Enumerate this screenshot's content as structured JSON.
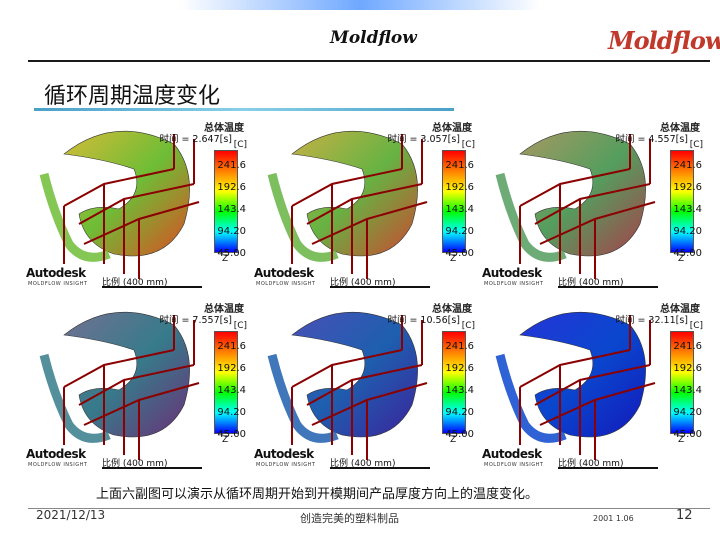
{
  "header": {
    "center_brand": "Moldflow",
    "logo": "Moldflow"
  },
  "title": "循环周期温度变化",
  "panels": [
    {
      "legend_title": "总体温度",
      "time": "时间 = 2.647[s]",
      "unit": "[C]",
      "ticks": [
        "241.6",
        "192.6",
        "143.4",
        "94.20",
        "45.00"
      ],
      "scale_label": "比例 (400 mm)",
      "brand": "Autodesk",
      "brand_sub": "MOLDFLOW INSIGHT",
      "axis": "Z",
      "blue_ratio": 0.08
    },
    {
      "legend_title": "总体温度",
      "time": "时间 = 3.057[s]",
      "unit": "[C]",
      "ticks": [
        "241.6",
        "192.6",
        "143.4",
        "94.20",
        "45.00"
      ],
      "scale_label": "比例 (400 mm)",
      "brand": "Autodesk",
      "brand_sub": "MOLDFLOW INSIGHT",
      "axis": "Z",
      "blue_ratio": 0.15
    },
    {
      "legend_title": "总体温度",
      "time": "时间 = 4.557[s]",
      "unit": "[C]",
      "ticks": [
        "241.6",
        "192.6",
        "143.4",
        "94.20",
        "45.00"
      ],
      "scale_label": "比例 (400 mm)",
      "brand": "Autodesk",
      "brand_sub": "MOLDFLOW INSIGHT",
      "axis": "Z",
      "blue_ratio": 0.3
    },
    {
      "legend_title": "总体温度",
      "time": "时间 = 7.557[s]",
      "unit": "[C]",
      "ticks": [
        "241.6",
        "192.6",
        "143.4",
        "94.20",
        "45.00"
      ],
      "scale_label": "比例 (400 mm)",
      "brand": "Autodesk",
      "brand_sub": "MOLDFLOW INSIGHT",
      "axis": "Z",
      "blue_ratio": 0.55
    },
    {
      "legend_title": "总体温度",
      "time": "时间 = 10.56[s]",
      "unit": "[C]",
      "ticks": [
        "241.6",
        "192.6",
        "143.4",
        "94.20",
        "45.00"
      ],
      "scale_label": "比例 (400 mm)",
      "brand": "Autodesk",
      "brand_sub": "MOLDFLOW INSIGHT",
      "axis": "Z",
      "blue_ratio": 0.75
    },
    {
      "legend_title": "总体温度",
      "time": "时间 = 32.11[s]",
      "unit": "[C]",
      "ticks": [
        "241.6",
        "192.6",
        "143.4",
        "94.20",
        "45.00"
      ],
      "scale_label": "比例 (400 mm)",
      "brand": "Autodesk",
      "brand_sub": "MOLDFLOW INSIGHT",
      "axis": "Z",
      "blue_ratio": 0.92
    }
  ],
  "caption": "上面六副图可以演示从循环周期开始到开模期间产品厚度方向上的温度变化。",
  "footer": {
    "date": "2021/12/13",
    "center": "创造完美的塑料制品",
    "version": "2001 1.06",
    "page": "12"
  }
}
